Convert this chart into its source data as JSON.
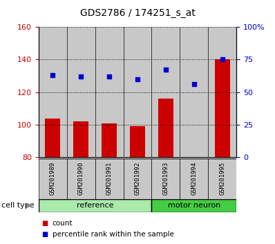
{
  "title": "GDS2786 / 174251_s_at",
  "samples": [
    "GSM201989",
    "GSM201990",
    "GSM201991",
    "GSM201992",
    "GSM201993",
    "GSM201994",
    "GSM201995"
  ],
  "counts": [
    104,
    102,
    101,
    99,
    116,
    80,
    140
  ],
  "percentiles_pct": [
    63,
    62,
    62,
    60,
    67,
    56,
    75
  ],
  "bar_color": "#cc0000",
  "dot_color": "#0000cc",
  "ylim_left": [
    80,
    160
  ],
  "ylim_right": [
    0,
    100
  ],
  "yticks_left": [
    80,
    100,
    120,
    140,
    160
  ],
  "yticks_right": [
    0,
    25,
    50,
    75,
    100
  ],
  "ytick_labels_right": [
    "0",
    "25",
    "50",
    "75",
    "100%"
  ],
  "groups": [
    {
      "label": "reference",
      "start": 0,
      "end": 4,
      "color": "#aaeaaa"
    },
    {
      "label": "motor neuron",
      "start": 4,
      "end": 7,
      "color": "#44cc44"
    }
  ],
  "xlabel_group": "cell type",
  "legend_count_label": "count",
  "legend_pct_label": "percentile rank within the sample",
  "background_color": "#ffffff",
  "bar_bg_color": "#c8c8c8",
  "tick_label_color_left": "#cc0000",
  "tick_label_color_right": "#0000cc"
}
